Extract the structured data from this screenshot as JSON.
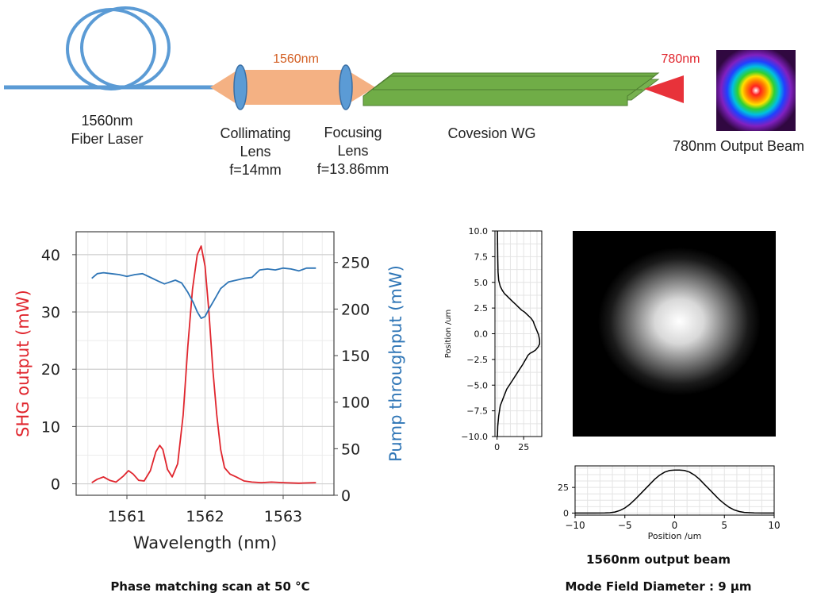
{
  "diagram": {
    "fiber_laser_label": [
      "1560nm",
      "Fiber Laser"
    ],
    "collimating_lens_label": [
      "Collimating",
      "Lens",
      "f=14mm"
    ],
    "focusing_lens_label": [
      "Focusing",
      "Lens",
      "f=13.86mm"
    ],
    "beam_wavelength_label": "1560nm",
    "waveguide_label": "Covesion WG",
    "output_wavelength_label": "780nm",
    "output_beam_label": "780nm Output Beam",
    "colors": {
      "fiber": "#5b9bd5",
      "beam_ir": "#f4b183",
      "lens": "#5b9bd5",
      "waveguide": "#70ad47",
      "output_cone": "#e8323a"
    }
  },
  "captions": {
    "scan": "Phase matching scan at 50 °C",
    "beam_title": "1560nm output beam",
    "mfd": "Mode Field Diameter : 9 µm"
  },
  "chart_data": [
    {
      "type": "line",
      "xlabel": "Wavelength (nm)",
      "ylabel": "SHG output (mW)",
      "y2label": "Pump throughput (mW)",
      "xlim": [
        1560.35,
        1563.65
      ],
      "ylim": [
        -2,
        44
      ],
      "y2lim": [
        0,
        283
      ],
      "xticks": [
        1561,
        1562,
        1563
      ],
      "yticks": [
        0,
        10,
        20,
        30,
        40
      ],
      "y2ticks": [
        0,
        50,
        100,
        150,
        200,
        250
      ],
      "grid": true,
      "series": [
        {
          "axis": "left",
          "color": "#e0252d",
          "x": [
            1560.55,
            1560.62,
            1560.7,
            1560.78,
            1560.86,
            1560.95,
            1561.02,
            1561.08,
            1561.15,
            1561.22,
            1561.3,
            1561.37,
            1561.42,
            1561.46,
            1561.52,
            1561.58,
            1561.65,
            1561.72,
            1561.78,
            1561.84,
            1561.9,
            1561.95,
            1562.0,
            1562.05,
            1562.1,
            1562.15,
            1562.2,
            1562.25,
            1562.32,
            1562.4,
            1562.5,
            1562.6,
            1562.72,
            1562.85,
            1563.0,
            1563.2,
            1563.42
          ],
          "values": [
            0.2,
            0.8,
            1.2,
            0.6,
            0.3,
            1.3,
            2.3,
            1.7,
            0.6,
            0.5,
            2.3,
            5.6,
            6.7,
            6.0,
            2.5,
            1.2,
            3.5,
            12,
            24,
            34,
            40,
            41.5,
            38,
            30,
            20,
            12,
            6,
            2.8,
            1.7,
            1.2,
            0.5,
            0.3,
            0.2,
            0.3,
            0.2,
            0.1,
            0.2
          ]
        },
        {
          "axis": "right",
          "color": "#2e75b6",
          "x": [
            1560.55,
            1560.62,
            1560.7,
            1560.8,
            1560.9,
            1561.0,
            1561.1,
            1561.2,
            1561.3,
            1561.4,
            1561.48,
            1561.55,
            1561.62,
            1561.7,
            1561.78,
            1561.85,
            1561.9,
            1561.95,
            1562.0,
            1562.05,
            1562.12,
            1562.2,
            1562.3,
            1562.4,
            1562.5,
            1562.6,
            1562.7,
            1562.8,
            1562.9,
            1563.0,
            1563.1,
            1563.2,
            1563.3,
            1563.42
          ],
          "values": [
            233,
            238,
            239,
            238,
            237,
            235,
            237,
            238,
            234,
            230,
            227,
            229,
            231,
            228,
            218,
            207,
            197,
            190,
            192,
            200,
            210,
            222,
            229,
            231,
            233,
            234,
            242,
            243,
            242,
            244,
            243,
            241,
            244,
            244
          ]
        }
      ]
    },
    {
      "type": "line",
      "ylabel": "Position /um",
      "xlim": [
        -2,
        42
      ],
      "ylim": [
        -10,
        10
      ],
      "xticks": [
        0,
        25
      ],
      "yticks": [
        -10.0,
        -7.5,
        -5.0,
        -2.5,
        0.0,
        2.5,
        5.0,
        7.5,
        10.0
      ],
      "grid": true,
      "x": [
        0.3,
        0.6,
        0.9,
        1.5,
        3,
        5,
        7,
        9,
        11,
        13,
        15,
        17,
        20,
        23,
        26,
        28,
        30,
        32,
        34,
        35,
        37,
        39,
        40,
        40,
        38.5,
        36,
        33,
        31,
        30,
        29,
        28,
        24,
        19,
        14,
        9,
        6,
        3,
        1.5,
        0.6,
        0.3
      ],
      "y": [
        10,
        7.5,
        6,
        5.2,
        4.6,
        4.2,
        3.9,
        3.7,
        3.5,
        3.3,
        3.1,
        2.9,
        2.6,
        2.3,
        2.1,
        1.9,
        1.7,
        1.5,
        1.2,
        0.9,
        0.4,
        -0.1,
        -0.6,
        -1,
        -1.3,
        -1.6,
        -1.8,
        -1.9,
        -2,
        -2.1,
        -2.3,
        -3,
        -3.8,
        -4.6,
        -5.4,
        -6.2,
        -7,
        -8,
        -9,
        -10
      ]
    },
    {
      "type": "heatmap",
      "colormap": "gray",
      "xlim": [
        -10,
        10
      ],
      "ylim": [
        -10,
        10
      ],
      "description_values": {
        "peak_center": [
          0.5,
          1.2
        ],
        "peak_half_width": [
          2.5,
          2.0
        ]
      }
    },
    {
      "type": "line",
      "xlabel": "Position /um",
      "xlim": [
        -10,
        10
      ],
      "ylim": [
        -2,
        46
      ],
      "xticks": [
        -10,
        -5,
        0,
        5,
        10
      ],
      "yticks": [
        0,
        25
      ],
      "grid": true,
      "x": [
        -10,
        -9,
        -8,
        -7,
        -6.5,
        -6,
        -5.5,
        -5,
        -4.5,
        -4,
        -3.5,
        -3,
        -2.5,
        -2,
        -1.5,
        -1,
        -0.5,
        0,
        0.5,
        1,
        1.5,
        2,
        2.5,
        3,
        3.5,
        4,
        4.5,
        5,
        5.5,
        6,
        6.5,
        7,
        8,
        9,
        10
      ],
      "values": [
        0,
        0,
        0,
        0.1,
        0.3,
        1,
        2.5,
        5,
        8.5,
        13,
        18,
        23,
        28,
        33,
        37,
        40,
        41.5,
        42,
        42,
        41.5,
        40,
        37,
        33,
        28,
        23,
        18,
        13,
        9,
        5.5,
        3,
        1.5,
        0.6,
        0.1,
        0,
        0
      ]
    }
  ]
}
